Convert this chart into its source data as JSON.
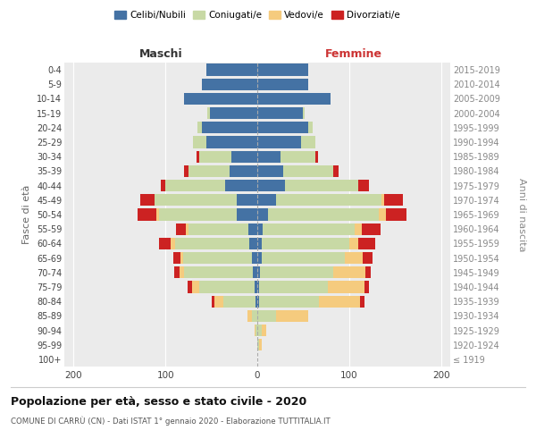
{
  "age_groups": [
    "100+",
    "95-99",
    "90-94",
    "85-89",
    "80-84",
    "75-79",
    "70-74",
    "65-69",
    "60-64",
    "55-59",
    "50-54",
    "45-49",
    "40-44",
    "35-39",
    "30-34",
    "25-29",
    "20-24",
    "15-19",
    "10-14",
    "5-9",
    "0-4"
  ],
  "birth_years": [
    "≤ 1919",
    "1920-1924",
    "1925-1929",
    "1930-1934",
    "1935-1939",
    "1940-1944",
    "1945-1949",
    "1950-1954",
    "1955-1959",
    "1960-1964",
    "1965-1969",
    "1970-1974",
    "1975-1979",
    "1980-1984",
    "1985-1989",
    "1990-1994",
    "1995-1999",
    "2000-2004",
    "2005-2009",
    "2010-2014",
    "2015-2019"
  ],
  "male": {
    "celibi": [
      0,
      0,
      0,
      0,
      2,
      3,
      5,
      6,
      9,
      10,
      22,
      22,
      35,
      30,
      28,
      55,
      60,
      52,
      80,
      60,
      55
    ],
    "coniugati": [
      0,
      0,
      2,
      6,
      35,
      60,
      75,
      75,
      80,
      65,
      85,
      90,
      65,
      45,
      35,
      15,
      5,
      2,
      0,
      0,
      0
    ],
    "vedovi": [
      0,
      0,
      1,
      5,
      10,
      8,
      5,
      3,
      5,
      3,
      3,
      0,
      0,
      0,
      0,
      0,
      0,
      0,
      0,
      0,
      0
    ],
    "divorziati": [
      0,
      0,
      0,
      0,
      3,
      5,
      5,
      7,
      13,
      10,
      20,
      15,
      5,
      5,
      3,
      0,
      0,
      0,
      0,
      0,
      0
    ]
  },
  "female": {
    "nubili": [
      0,
      0,
      0,
      0,
      2,
      2,
      3,
      5,
      5,
      6,
      12,
      20,
      30,
      28,
      25,
      48,
      55,
      50,
      80,
      55,
      55
    ],
    "coniugate": [
      0,
      2,
      5,
      20,
      65,
      75,
      80,
      90,
      95,
      100,
      120,
      115,
      80,
      55,
      38,
      15,
      5,
      2,
      0,
      0,
      0
    ],
    "vedove": [
      0,
      3,
      5,
      35,
      45,
      40,
      35,
      20,
      10,
      8,
      8,
      3,
      0,
      0,
      0,
      0,
      0,
      0,
      0,
      0,
      0
    ],
    "divorziate": [
      0,
      0,
      0,
      0,
      5,
      5,
      5,
      10,
      18,
      20,
      22,
      20,
      12,
      5,
      3,
      0,
      0,
      0,
      0,
      0,
      0
    ]
  },
  "colors": {
    "celibi": "#4472a4",
    "coniugati": "#c8d9a5",
    "vedovi": "#f5cb7e",
    "divorziati": "#cc2222"
  },
  "title": "Popolazione per età, sesso e stato civile - 2020",
  "subtitle": "COMUNE DI CARRÙ (CN) - Dati ISTAT 1° gennaio 2020 - Elaborazione TUTTITALIA.IT",
  "xlabel_left": "Maschi",
  "xlabel_right": "Femmine",
  "ylabel_left": "Fasce di età",
  "ylabel_right": "Anni di nascita",
  "legend_labels": [
    "Celibi/Nubili",
    "Coniugati/e",
    "Vedovi/e",
    "Divorziati/e"
  ],
  "xlim": 210,
  "bg_color": "#ffffff",
  "plot_bg_color": "#ebebeb",
  "grid_color": "#ffffff"
}
